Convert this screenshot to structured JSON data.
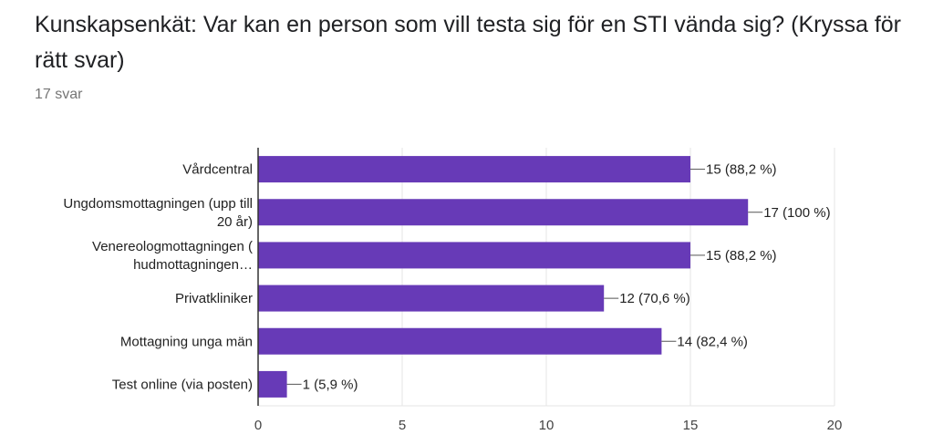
{
  "header": {
    "title": "Kunskapsenkät: Var kan en person som vill testa sig för en STI vända sig? (Kryssa för rätt svar)",
    "response_count": "17 svar"
  },
  "chart_data": {
    "type": "bar",
    "orientation": "horizontal",
    "categories": [
      [
        "Vårdcentral"
      ],
      [
        "Ungdomsmottagningen (upp till",
        "20 år)"
      ],
      [
        "Venereologmottagningen (",
        "hudmottagningen…"
      ],
      [
        "Privatkliniker"
      ],
      [
        "Mottagning unga män"
      ],
      [
        "Test online (via posten)"
      ]
    ],
    "values": [
      15,
      17,
      15,
      12,
      14,
      1
    ],
    "value_labels": [
      "15 (88,2 %)",
      "17 (100 %)",
      "15 (88,2 %)",
      "12 (70,6 %)",
      "14 (82,4 %)",
      "1 (5,9 %)"
    ],
    "xlim": [
      0,
      20
    ],
    "xticks": [
      0,
      5,
      10,
      15,
      20
    ],
    "grid": true,
    "bar_color": "#673ab7",
    "grid_color": "#e6e6e6",
    "axis_color": "#333333"
  }
}
